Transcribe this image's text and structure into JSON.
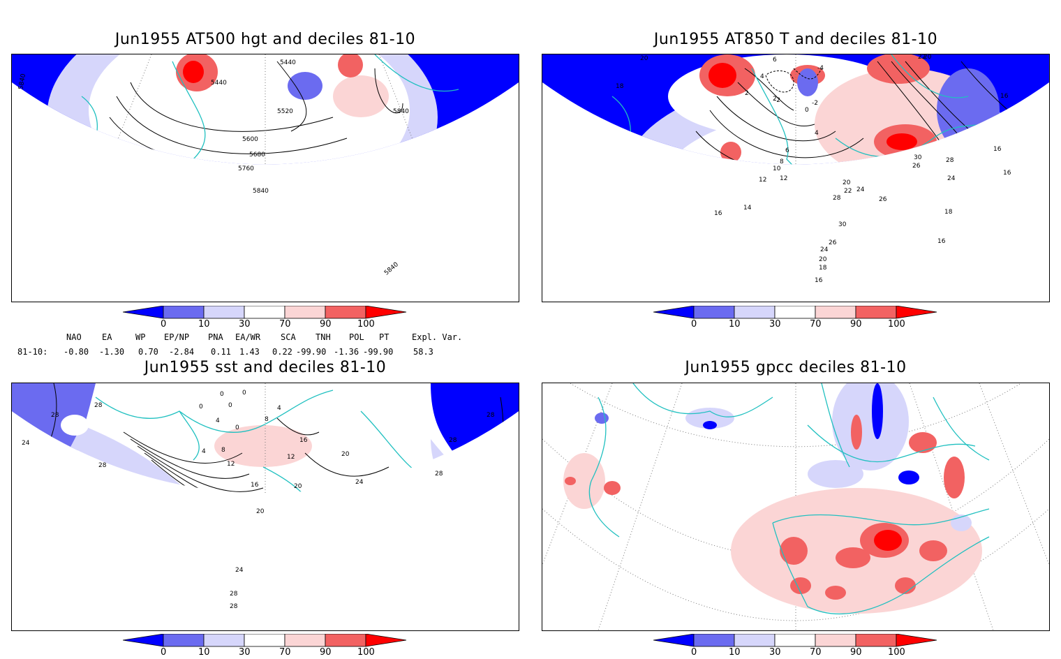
{
  "panels": [
    {
      "id": "p1",
      "title": "Jun1955 AT500 hgt and deciles 81-10",
      "contour_labels": [
        "5440",
        "5440",
        "5520",
        "5600",
        "5680",
        "5760",
        "5840",
        "5840",
        "5840",
        "5840"
      ]
    },
    {
      "id": "p2",
      "title": "Jun1955 AT850 T and deciles 81-10",
      "contour_labels": [
        "20",
        "6",
        "4",
        "2",
        "0",
        "-2",
        "-4",
        "-2",
        "2",
        "4",
        "6",
        "8",
        "10",
        "12",
        "14",
        "16",
        "18",
        "16",
        "20",
        "22",
        "24",
        "26",
        "28",
        "30",
        "16",
        "18",
        "16",
        "22",
        "20",
        "28",
        "26",
        "24",
        "16",
        "26",
        "24",
        "30",
        "20",
        "18",
        "16",
        "12"
      ]
    },
    {
      "id": "p3",
      "title": "Jun1955 sst and deciles 81-10",
      "contour_labels": [
        "28",
        "24",
        "28",
        "28",
        "0",
        "0",
        "0",
        "4",
        "4",
        "8",
        "12",
        "16",
        "20",
        "24",
        "28",
        "28",
        "12",
        "16",
        "20",
        "20",
        "24",
        "28",
        "28",
        "28",
        "4",
        "8",
        "0",
        "0"
      ]
    },
    {
      "id": "p4",
      "title": "Jun1955 gpcc deciles 81-10",
      "contour_labels": []
    }
  ],
  "colorbar": {
    "ticks": [
      "0",
      "10",
      "30",
      "70",
      "90",
      "100"
    ],
    "colors": {
      "deep_blue": "#0000ff",
      "mid_blue": "#6b6bf0",
      "light_blue": "#d6d6fb",
      "white": "#ffffff",
      "light_red": "#fbd5d5",
      "mid_red": "#f26262",
      "deep_red": "#ff0000"
    }
  },
  "indices": {
    "header": [
      "NAO",
      "EA",
      "WP",
      "EP/NP",
      "PNA",
      "EA/WR",
      "SCA",
      "TNH",
      "POL",
      "PT",
      "Expl. Var."
    ],
    "row_label": "81-10:",
    "values": [
      "-0.80",
      "-1.30",
      "0.70",
      "-2.84",
      "0.11",
      "1.43",
      "0.22",
      "-99.90",
      "-1.36",
      "-99.90",
      "58.3"
    ]
  },
  "coast_color": "#20c0c0"
}
